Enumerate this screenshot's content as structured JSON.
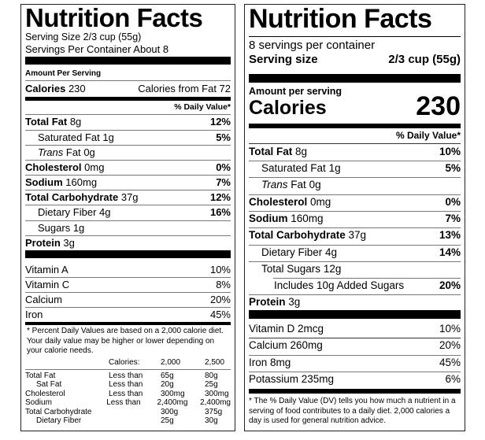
{
  "old_label": {
    "title": "Nutrition Facts",
    "serving_size": "Serving Size 2/3 cup (55g)",
    "servings_per_container": "Servings Per Container About 8",
    "amount_per_serving": "Amount Per Serving",
    "calories_label": "Calories",
    "calories_value": "230",
    "calories_from_fat": "Calories from Fat 72",
    "dv_header": "% Daily Value*",
    "nutrients": [
      {
        "name": "Total Fat",
        "amount": "8g",
        "dv": "12%"
      },
      {
        "name": "Saturated Fat",
        "amount": "1g",
        "dv": "5%"
      },
      {
        "name": "Trans",
        "name2": "Fat",
        "amount": "0g",
        "dv": ""
      },
      {
        "name": "Cholesterol",
        "amount": "0mg",
        "dv": "0%"
      },
      {
        "name": "Sodium",
        "amount": "160mg",
        "dv": "7%"
      },
      {
        "name": "Total Carbohydrate",
        "amount": "37g",
        "dv": "12%"
      },
      {
        "name": "Dietary Fiber",
        "amount": "4g",
        "dv": "16%"
      },
      {
        "name": "Sugars",
        "amount": "1g",
        "dv": ""
      },
      {
        "name": "Protein",
        "amount": "3g",
        "dv": ""
      }
    ],
    "vitamins": [
      {
        "name": "Vitamin A",
        "dv": "10%"
      },
      {
        "name": "Vitamin C",
        "dv": "8%"
      },
      {
        "name": "Calcium",
        "dv": "20%"
      },
      {
        "name": "Iron",
        "dv": "45%"
      }
    ],
    "footnote": "* Percent Daily Values are based on a 2,000 calorie diet. Your daily value may be higher or lower depending on your calorie needs.",
    "table_header": [
      "",
      "Calories:",
      "2,000",
      "2,500"
    ],
    "table_rows": [
      [
        "Total Fat",
        "Less than",
        "65g",
        "80g"
      ],
      [
        "Sat Fat",
        "Less than",
        "20g",
        "25g"
      ],
      [
        "Cholesterol",
        "Less than",
        "300mg",
        "300mg"
      ],
      [
        "Sodium",
        "Less than",
        "2,400mg",
        "2,400mg"
      ],
      [
        "Total Carbohydrate",
        "",
        "300g",
        "375g"
      ],
      [
        "Dietary Fiber",
        "",
        "25g",
        "30g"
      ]
    ]
  },
  "new_label": {
    "title": "Nutrition Facts",
    "servings_per_container": "8 servings per container",
    "serving_size_label": "Serving size",
    "serving_size_value": "2/3 cup (55g)",
    "amount_per_serving": "Amount per serving",
    "calories_label": "Calories",
    "calories_value": "230",
    "dv_header": "% Daily Value*",
    "nutrients": [
      {
        "name": "Total Fat",
        "amount": "8g",
        "dv": "10%"
      },
      {
        "name": "Saturated Fat",
        "amount": "1g",
        "dv": "5%"
      },
      {
        "name": "Trans",
        "name2": "Fat",
        "amount": "0g",
        "dv": ""
      },
      {
        "name": "Cholesterol",
        "amount": "0mg",
        "dv": "0%"
      },
      {
        "name": "Sodium",
        "amount": "160mg",
        "dv": "7%"
      },
      {
        "name": "Total Carbohydrate",
        "amount": "37g",
        "dv": "13%"
      },
      {
        "name": "Dietary Fiber",
        "amount": "4g",
        "dv": "14%"
      },
      {
        "name": "Total Sugars",
        "amount": "12g",
        "dv": ""
      },
      {
        "name": "Includes 10g Added Sugars",
        "amount": "",
        "dv": "20%"
      },
      {
        "name": "Protein",
        "amount": "3g",
        "dv": ""
      }
    ],
    "vitamins": [
      {
        "name": "Vitamin D 2mcg",
        "dv": "10%"
      },
      {
        "name": "Calcium 260mg",
        "dv": "20%"
      },
      {
        "name": "Iron 8mg",
        "dv": "45%"
      },
      {
        "name": "Potassium 235mg",
        "dv": "6%"
      }
    ],
    "footnote": "* The % Daily Value (DV) tells you how much a nutrient in a serving of food contributes to a daily diet. 2,000 calories a day is used for general nutrition advice."
  }
}
